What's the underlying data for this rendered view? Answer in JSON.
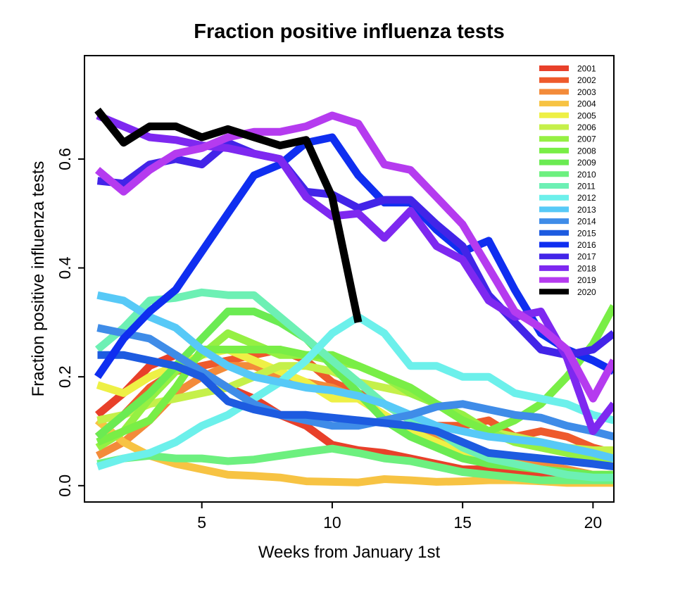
{
  "chart_data": {
    "type": "line",
    "title": "Fraction positive influenza tests",
    "xlabel": "Weeks from January 1st",
    "ylabel": "Fraction positive influenza tests",
    "xlim": [
      0.5,
      20.8
    ],
    "ylim": [
      -0.03,
      0.79
    ],
    "x_ticks": [
      5,
      10,
      15,
      20
    ],
    "y_ticks": [
      0.0,
      0.2,
      0.4,
      0.6
    ],
    "x_tick_labels": [
      "5",
      "10",
      "15",
      "20"
    ],
    "y_tick_labels": [
      "0.0",
      "0.2",
      "0.4",
      "0.6"
    ],
    "grid": false,
    "legend_position": "top-right",
    "series": [
      {
        "name": "2001",
        "color": "#E8402A",
        "x": [
          1,
          2,
          3,
          4,
          5,
          6,
          7,
          8,
          9,
          10,
          11,
          12,
          13,
          14,
          15,
          16,
          17,
          18,
          19,
          20,
          20.8
        ],
        "values": [
          0.13,
          0.17,
          0.22,
          0.24,
          0.21,
          0.18,
          0.16,
          0.13,
          0.11,
          0.075,
          0.065,
          0.06,
          0.05,
          0.04,
          0.03,
          0.03,
          0.025,
          0.02,
          0.015,
          0.01,
          0.01
        ]
      },
      {
        "name": "2002",
        "color": "#EE5A2C",
        "x": [
          1,
          2,
          3,
          4,
          5,
          6,
          7,
          8,
          9,
          10,
          11,
          12,
          13,
          14,
          15,
          16,
          17,
          18,
          19,
          20,
          20.8
        ],
        "values": [
          0.09,
          0.13,
          0.18,
          0.21,
          0.22,
          0.23,
          0.24,
          0.25,
          0.23,
          0.19,
          0.17,
          0.15,
          0.12,
          0.11,
          0.11,
          0.12,
          0.09,
          0.1,
          0.09,
          0.07,
          0.06
        ]
      },
      {
        "name": "2003",
        "color": "#F38B3A",
        "x": [
          1,
          2,
          3,
          4,
          5,
          6,
          7,
          8,
          9,
          10,
          11,
          12,
          13,
          14,
          15,
          16,
          17,
          18,
          19,
          20,
          20.8
        ],
        "values": [
          0.055,
          0.08,
          0.12,
          0.17,
          0.2,
          0.22,
          0.22,
          0.2,
          0.19,
          0.18,
          0.16,
          0.13,
          0.1,
          0.09,
          0.07,
          0.06,
          0.05,
          0.04,
          0.03,
          0.02,
          0.02
        ]
      },
      {
        "name": "2004",
        "color": "#F7C343",
        "x": [
          1,
          2,
          3,
          4,
          5,
          6,
          7,
          8,
          9,
          10,
          11,
          12,
          13,
          14,
          15,
          16,
          17,
          18,
          19,
          20,
          20.8
        ],
        "values": [
          0.12,
          0.08,
          0.055,
          0.04,
          0.03,
          0.02,
          0.018,
          0.015,
          0.008,
          0.007,
          0.006,
          0.012,
          0.01,
          0.007,
          0.008,
          0.01,
          0.01,
          0.008,
          0.005,
          0.005,
          0.005
        ]
      },
      {
        "name": "2005",
        "color": "#EEF045",
        "x": [
          1,
          2,
          3,
          4,
          5,
          6,
          7,
          8,
          9,
          10,
          11,
          12,
          13,
          14,
          15,
          16,
          17,
          18,
          19,
          20,
          20.8
        ],
        "values": [
          0.185,
          0.17,
          0.2,
          0.22,
          0.24,
          0.25,
          0.23,
          0.21,
          0.19,
          0.16,
          0.16,
          0.13,
          0.1,
          0.08,
          0.06,
          0.05,
          0.04,
          0.03,
          0.025,
          0.02,
          0.02
        ]
      },
      {
        "name": "2006",
        "color": "#C5F04A",
        "x": [
          1,
          2,
          3,
          4,
          5,
          6,
          7,
          8,
          9,
          10,
          11,
          12,
          13,
          14,
          15,
          16,
          17,
          18,
          19,
          20,
          20.8
        ],
        "values": [
          0.12,
          0.13,
          0.15,
          0.16,
          0.17,
          0.18,
          0.2,
          0.22,
          0.22,
          0.21,
          0.19,
          0.18,
          0.17,
          0.15,
          0.12,
          0.1,
          0.09,
          0.08,
          0.07,
          0.065,
          0.065
        ]
      },
      {
        "name": "2007",
        "color": "#95F043",
        "x": [
          1,
          2,
          3,
          4,
          5,
          6,
          7,
          8,
          9,
          10,
          11,
          12,
          13,
          14,
          15,
          16,
          17,
          18,
          19,
          20,
          20.8
        ],
        "values": [
          0.07,
          0.1,
          0.16,
          0.21,
          0.24,
          0.28,
          0.26,
          0.24,
          0.24,
          0.23,
          0.22,
          0.2,
          0.17,
          0.15,
          0.13,
          0.1,
          0.08,
          0.07,
          0.06,
          0.05,
          0.05
        ]
      },
      {
        "name": "2008",
        "color": "#79EE46",
        "x": [
          1,
          2,
          3,
          4,
          5,
          6,
          7,
          8,
          9,
          10,
          11,
          12,
          13,
          14,
          15,
          16,
          17,
          18,
          19,
          20,
          20.8
        ],
        "values": [
          0.08,
          0.1,
          0.12,
          0.18,
          0.25,
          0.25,
          0.25,
          0.25,
          0.24,
          0.24,
          0.22,
          0.2,
          0.18,
          0.15,
          0.12,
          0.1,
          0.12,
          0.15,
          0.2,
          0.26,
          0.33
        ]
      },
      {
        "name": "2009",
        "color": "#6BEB52",
        "x": [
          1,
          2,
          3,
          4,
          5,
          6,
          7,
          8,
          9,
          10,
          11,
          12,
          13,
          14,
          15,
          16,
          17,
          18,
          19,
          20,
          20.8
        ],
        "values": [
          0.09,
          0.13,
          0.17,
          0.22,
          0.27,
          0.32,
          0.32,
          0.3,
          0.27,
          0.22,
          0.17,
          0.12,
          0.09,
          0.07,
          0.05,
          0.04,
          0.035,
          0.03,
          0.025,
          0.02,
          0.02
        ]
      },
      {
        "name": "2010",
        "color": "#6DF07F",
        "x": [
          1,
          2,
          3,
          4,
          5,
          6,
          7,
          8,
          9,
          10,
          11,
          12,
          13,
          14,
          15,
          16,
          17,
          18,
          19,
          20,
          20.8
        ],
        "values": [
          0.04,
          0.05,
          0.055,
          0.05,
          0.05,
          0.045,
          0.048,
          0.055,
          0.062,
          0.068,
          0.06,
          0.05,
          0.045,
          0.035,
          0.025,
          0.02,
          0.015,
          0.01,
          0.01,
          0.01,
          0.01
        ]
      },
      {
        "name": "2011",
        "color": "#6DF0B4",
        "x": [
          1,
          2,
          3,
          4,
          5,
          6,
          7,
          8,
          9,
          10,
          11,
          12,
          13,
          14,
          15,
          16,
          17,
          18,
          19,
          20,
          20.8
        ],
        "values": [
          0.25,
          0.29,
          0.34,
          0.345,
          0.355,
          0.35,
          0.35,
          0.31,
          0.27,
          0.23,
          0.19,
          0.15,
          0.12,
          0.1,
          0.07,
          0.05,
          0.04,
          0.03,
          0.02,
          0.015,
          0.015
        ]
      },
      {
        "name": "2012",
        "color": "#6CF0EB",
        "x": [
          1,
          2,
          3,
          4,
          5,
          6,
          7,
          8,
          9,
          10,
          11,
          12,
          13,
          14,
          15,
          16,
          17,
          18,
          19,
          20,
          20.8
        ],
        "values": [
          0.035,
          0.05,
          0.06,
          0.08,
          0.11,
          0.13,
          0.16,
          0.19,
          0.23,
          0.28,
          0.31,
          0.28,
          0.22,
          0.22,
          0.2,
          0.2,
          0.17,
          0.16,
          0.15,
          0.13,
          0.12
        ]
      },
      {
        "name": "2013",
        "color": "#57C9F7",
        "x": [
          1,
          2,
          3,
          4,
          5,
          6,
          7,
          8,
          9,
          10,
          11,
          12,
          13,
          14,
          15,
          16,
          17,
          18,
          19,
          20,
          20.8
        ],
        "values": [
          0.35,
          0.34,
          0.31,
          0.29,
          0.25,
          0.22,
          0.2,
          0.19,
          0.18,
          0.175,
          0.165,
          0.15,
          0.13,
          0.11,
          0.1,
          0.09,
          0.085,
          0.08,
          0.07,
          0.06,
          0.05
        ]
      },
      {
        "name": "2014",
        "color": "#3F8CE8",
        "x": [
          1,
          2,
          3,
          4,
          5,
          6,
          7,
          8,
          9,
          10,
          11,
          12,
          13,
          14,
          15,
          16,
          17,
          18,
          19,
          20,
          20.8
        ],
        "values": [
          0.29,
          0.28,
          0.27,
          0.24,
          0.21,
          0.18,
          0.15,
          0.13,
          0.12,
          0.11,
          0.11,
          0.12,
          0.13,
          0.145,
          0.15,
          0.14,
          0.13,
          0.125,
          0.11,
          0.1,
          0.09
        ]
      },
      {
        "name": "2015",
        "color": "#1D5BE0",
        "x": [
          1,
          2,
          3,
          4,
          5,
          6,
          7,
          8,
          9,
          10,
          11,
          12,
          13,
          14,
          15,
          16,
          17,
          18,
          19,
          20,
          20.8
        ],
        "values": [
          0.24,
          0.24,
          0.23,
          0.22,
          0.2,
          0.155,
          0.14,
          0.13,
          0.13,
          0.125,
          0.12,
          0.115,
          0.11,
          0.1,
          0.08,
          0.06,
          0.055,
          0.05,
          0.045,
          0.04,
          0.035
        ]
      },
      {
        "name": "2016",
        "color": "#0F2EF0",
        "x": [
          1,
          2,
          3,
          4,
          5,
          6,
          7,
          8,
          9,
          10,
          11,
          12,
          13,
          14,
          15,
          16,
          17,
          18,
          19,
          20,
          20.8
        ],
        "values": [
          0.2,
          0.27,
          0.32,
          0.36,
          0.43,
          0.5,
          0.57,
          0.59,
          0.63,
          0.64,
          0.57,
          0.52,
          0.52,
          0.47,
          0.43,
          0.45,
          0.36,
          0.28,
          0.25,
          0.23,
          0.21
        ]
      },
      {
        "name": "2017",
        "color": "#4224E8",
        "x": [
          1,
          2,
          3,
          4,
          5,
          6,
          7,
          8,
          9,
          10,
          11,
          12,
          13,
          14,
          15,
          16,
          17,
          18,
          19,
          20,
          20.8
        ],
        "values": [
          0.56,
          0.555,
          0.59,
          0.6,
          0.59,
          0.63,
          0.61,
          0.6,
          0.54,
          0.535,
          0.51,
          0.525,
          0.525,
          0.48,
          0.44,
          0.35,
          0.3,
          0.25,
          0.24,
          0.25,
          0.28
        ]
      },
      {
        "name": "2018",
        "color": "#7E28F0",
        "x": [
          1,
          2,
          3,
          4,
          5,
          6,
          7,
          8,
          9,
          10,
          11,
          12,
          13,
          14,
          15,
          16,
          17,
          18,
          19,
          20,
          20.8
        ],
        "values": [
          0.68,
          0.66,
          0.64,
          0.635,
          0.625,
          0.62,
          0.61,
          0.6,
          0.53,
          0.495,
          0.5,
          0.455,
          0.505,
          0.44,
          0.415,
          0.34,
          0.31,
          0.32,
          0.235,
          0.1,
          0.15
        ]
      },
      {
        "name": "2019",
        "color": "#B53BEF",
        "x": [
          1,
          2,
          3,
          4,
          5,
          6,
          7,
          8,
          9,
          10,
          11,
          12,
          13,
          14,
          15,
          16,
          17,
          18,
          19,
          20,
          20.8
        ],
        "values": [
          0.58,
          0.54,
          0.58,
          0.61,
          0.62,
          0.64,
          0.65,
          0.65,
          0.66,
          0.68,
          0.665,
          0.59,
          0.58,
          0.53,
          0.48,
          0.4,
          0.32,
          0.29,
          0.25,
          0.16,
          0.23
        ]
      },
      {
        "name": "2020",
        "color": "#000000",
        "x": [
          1,
          2,
          3,
          4,
          5,
          6,
          7,
          8,
          9,
          10,
          11
        ],
        "values": [
          0.69,
          0.63,
          0.66,
          0.66,
          0.64,
          0.655,
          0.64,
          0.625,
          0.635,
          0.53,
          0.3
        ]
      }
    ]
  }
}
